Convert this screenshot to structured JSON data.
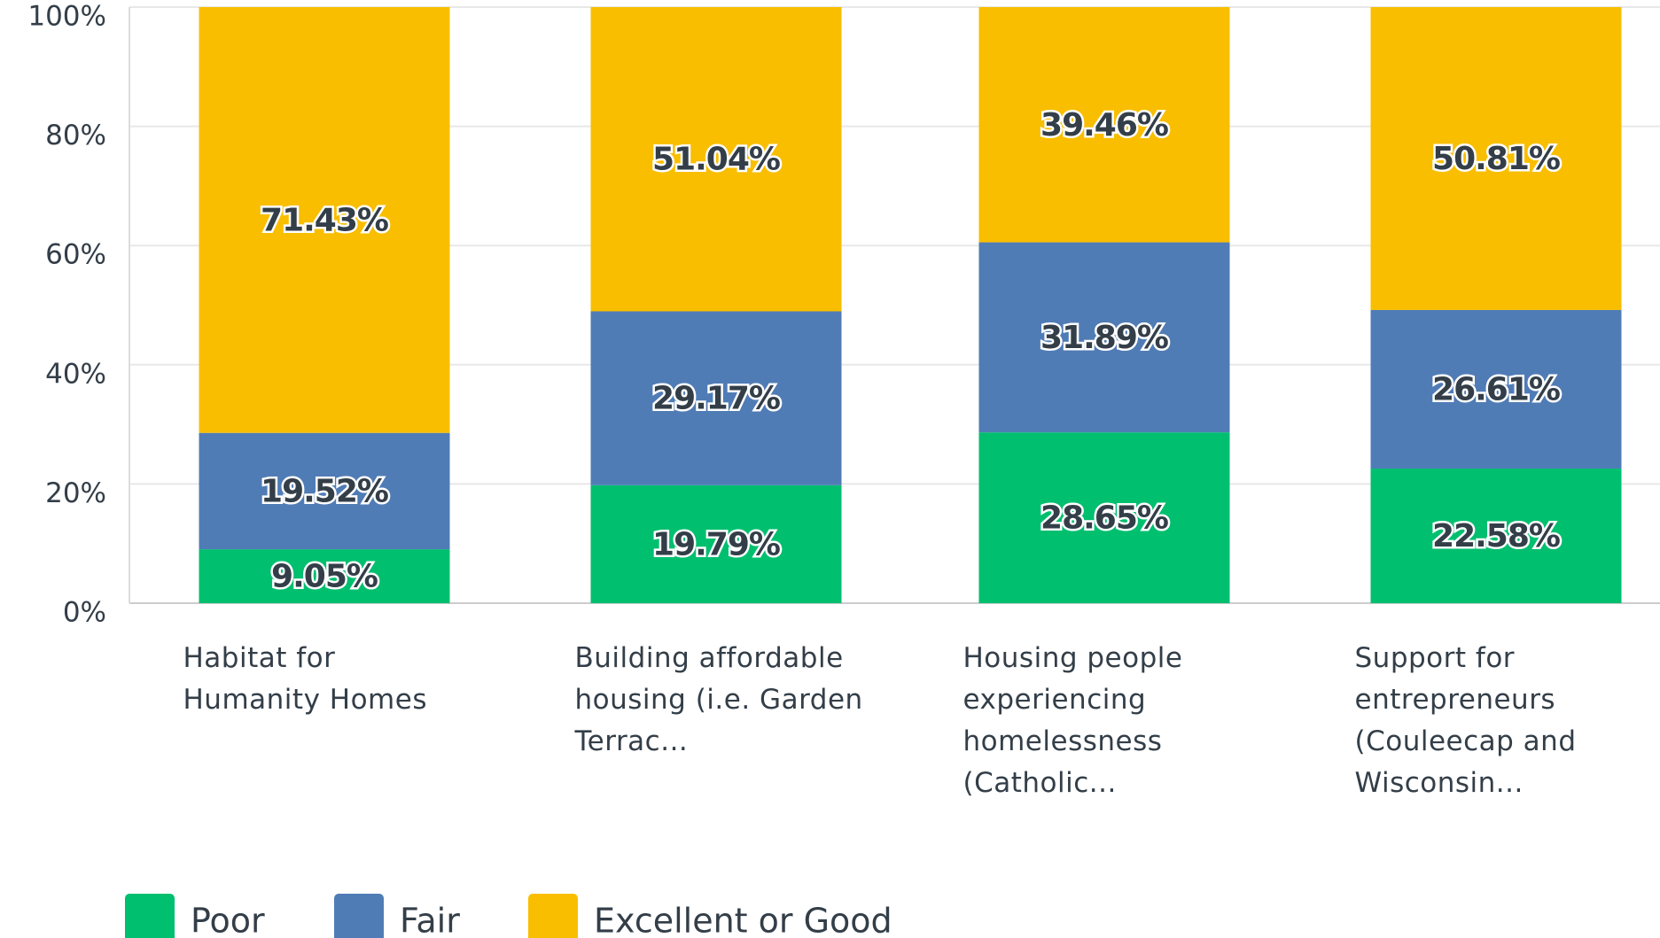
{
  "chart_data": {
    "type": "stacked_bar",
    "categories": [
      "Habitat for Humanity Homes",
      "Building affordable housing (i.e. Garden Terrac...",
      "Housing people experiencing homelessness (Catholic...",
      "Support for entrepreneurs (Couleecap and Wisconsin..."
    ],
    "series": [
      {
        "name": "Poor",
        "color": "#00bf6f",
        "values": [
          9.05,
          19.79,
          28.65,
          22.58
        ],
        "value_labels": [
          "9.05%",
          "19.79%",
          "28.65%",
          "22.58%"
        ]
      },
      {
        "name": "Fair",
        "color": "#507cb6",
        "values": [
          19.52,
          29.17,
          31.89,
          26.61
        ],
        "value_labels": [
          "19.52%",
          "29.17%",
          "31.89%",
          "26.61%"
        ]
      },
      {
        "name": "Excellent or Good",
        "color": "#f9be00",
        "values": [
          71.43,
          51.04,
          39.46,
          50.81
        ],
        "value_labels": [
          "71.43%",
          "51.04%",
          "39.46%",
          "50.81%"
        ]
      }
    ],
    "ylim": [
      0,
      100
    ],
    "yticks": [
      {
        "value": 0,
        "label": "0%"
      },
      {
        "value": 20,
        "label": "20%"
      },
      {
        "value": 40,
        "label": "40%"
      },
      {
        "value": 60,
        "label": "60%"
      },
      {
        "value": 80,
        "label": "80%"
      },
      {
        "value": 100,
        "label": "100%"
      }
    ],
    "grid": true,
    "legend": "bottom-left"
  }
}
